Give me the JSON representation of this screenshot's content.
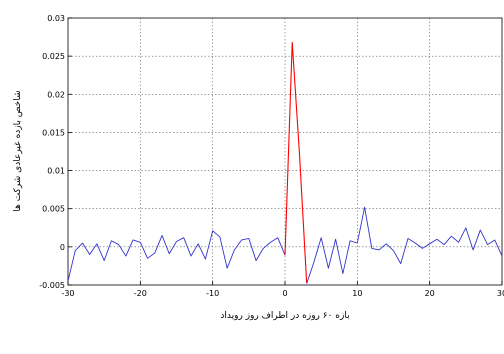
{
  "chart_data": {
    "type": "line",
    "title": "",
    "xlabel": "بازه ۶۰ روزه در اطراف روز رویداد",
    "ylabel": "شاخص بازده غیرعادی شرکت ها",
    "xlim": [
      -30,
      30
    ],
    "ylim": [
      -0.005,
      0.03
    ],
    "grid": true,
    "x_ticks": [
      -30,
      -20,
      -10,
      0,
      10,
      20,
      30
    ],
    "y_ticks": [
      -0.005,
      0,
      0.005,
      0.01,
      0.015,
      0.02,
      0.025,
      0.03
    ],
    "y_tick_labels": [
      "-0.005",
      "0",
      "0.005",
      "0.01",
      "0.015",
      "0.02",
      "0.025",
      "0.03"
    ],
    "series": [
      {
        "color": "#3333cc",
        "x": [
          -30,
          -29,
          -28,
          -27,
          -26,
          -25,
          -24,
          -23,
          -22,
          -21,
          -20,
          -19,
          -18,
          -17,
          -16,
          -15,
          -14,
          -13,
          -12,
          -11,
          -10,
          -9,
          -8,
          -7,
          -6,
          -5,
          -4,
          -3,
          -2,
          -1,
          0
        ],
        "y": [
          -0.0045,
          -0.0005,
          0.0005,
          -0.001,
          0.0004,
          -0.0018,
          0.0008,
          0.0003,
          -0.0012,
          0.0009,
          0.0006,
          -0.0015,
          -0.0008,
          0.0015,
          -0.0009,
          0.0007,
          0.0012,
          -0.0012,
          0.0004,
          -0.0016,
          0.0021,
          0.0013,
          -0.0028,
          -0.0004,
          0.0009,
          0.0011,
          -0.0018,
          -0.0002,
          0.0006,
          0.0012,
          -0.0011
        ]
      },
      {
        "color": "#ff0000",
        "x": [
          0,
          1,
          2,
          3
        ],
        "y": [
          -0.0011,
          0.0268,
          0.0122,
          -0.0048
        ]
      },
      {
        "color": "#3333cc",
        "x": [
          3,
          4,
          5,
          6,
          7,
          8,
          9,
          10,
          11,
          12,
          13,
          14,
          15,
          16,
          17,
          18,
          19,
          20,
          21,
          22,
          23,
          24,
          25,
          26,
          27,
          28,
          29,
          30
        ],
        "y": [
          -0.0048,
          -0.002,
          0.0012,
          -0.0028,
          0.001,
          -0.0035,
          0.0008,
          0.0005,
          0.0052,
          -0.0002,
          -0.0004,
          0.0004,
          -0.0005,
          -0.0022,
          0.0011,
          0.0005,
          -0.0002,
          0.0004,
          0.001,
          0.0003,
          0.0014,
          0.0006,
          0.0025,
          -0.0004,
          0.0022,
          0.0003,
          0.0009,
          -0.0012
        ]
      }
    ]
  }
}
